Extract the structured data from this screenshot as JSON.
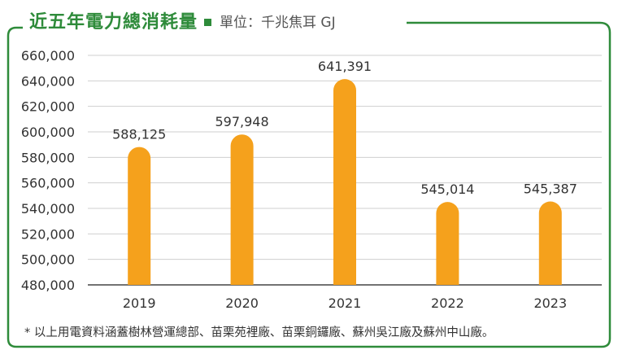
{
  "header": {
    "title": "近五年電力總消耗量",
    "unit_label": "單位：千兆焦耳 GJ"
  },
  "footnote": "* 以上用電資料涵蓋樹林營運總部、苗栗苑裡廠、苗栗銅鑼廠、蘇州吳江廠及蘇州中山廠。",
  "colors": {
    "accent_green": "#2e8b3a",
    "bar": "#f5a11c",
    "grid": "#cfcfcf",
    "text": "#333333"
  },
  "chart_data": {
    "type": "bar",
    "categories": [
      "2019",
      "2020",
      "2021",
      "2022",
      "2023"
    ],
    "values": [
      588125,
      597948,
      641391,
      545014,
      545387
    ],
    "value_labels": [
      "588,125",
      "597,948",
      "641,391",
      "545,014",
      "545,387"
    ],
    "ylim": [
      480000,
      660000
    ],
    "yticks": [
      480000,
      500000,
      520000,
      540000,
      560000,
      580000,
      600000,
      620000,
      640000,
      660000
    ],
    "ytick_labels": [
      "480,000",
      "500,000",
      "520,000",
      "540,000",
      "560,000",
      "580,000",
      "600,000",
      "620,000",
      "640,000",
      "660,000"
    ],
    "grid": true
  }
}
